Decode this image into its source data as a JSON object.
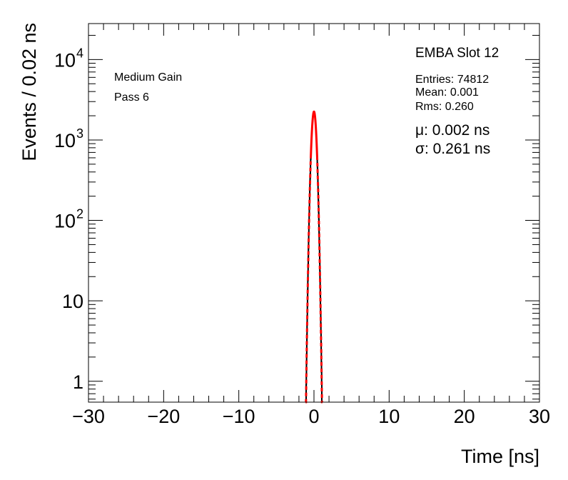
{
  "chart_data": {
    "type": "histogram",
    "title": "EMBA Slot 12",
    "xlabel": "Time [ns]",
    "ylabel": "Events / 0.02 ns",
    "xlim": [
      -30,
      30
    ],
    "ylim": [
      0.55,
      28000
    ],
    "yscale": "log",
    "grid": false,
    "x_ticks": [
      -30,
      -20,
      -10,
      0,
      10,
      20,
      30
    ],
    "x_tick_labels": [
      "−30",
      "−20",
      "−10",
      "0",
      "10",
      "20",
      "30"
    ],
    "y_ticks": [
      {
        "value": 1,
        "base": "1",
        "exp": ""
      },
      {
        "value": 10,
        "base": "10",
        "exp": ""
      },
      {
        "value": 100,
        "base": "10",
        "exp": "2"
      },
      {
        "value": 1000,
        "base": "10",
        "exp": "3"
      },
      {
        "value": 10000,
        "base": "10",
        "exp": "4"
      }
    ],
    "bin_width": 0.02,
    "annotations": {
      "gain": "Medium Gain",
      "pass": "Pass 6"
    },
    "stats": {
      "entries": "Entries: 74812",
      "mean": "Mean: 0.001",
      "rms": "Rms: 0.260"
    },
    "fit": {
      "mu_text": "μ: 0.002 ns",
      "sigma_text": "σ: 0.261 ns",
      "mu": 0.002,
      "sigma": 0.261,
      "peak": 2250,
      "color": "#ff0000"
    },
    "histogram_color": "#000000"
  }
}
